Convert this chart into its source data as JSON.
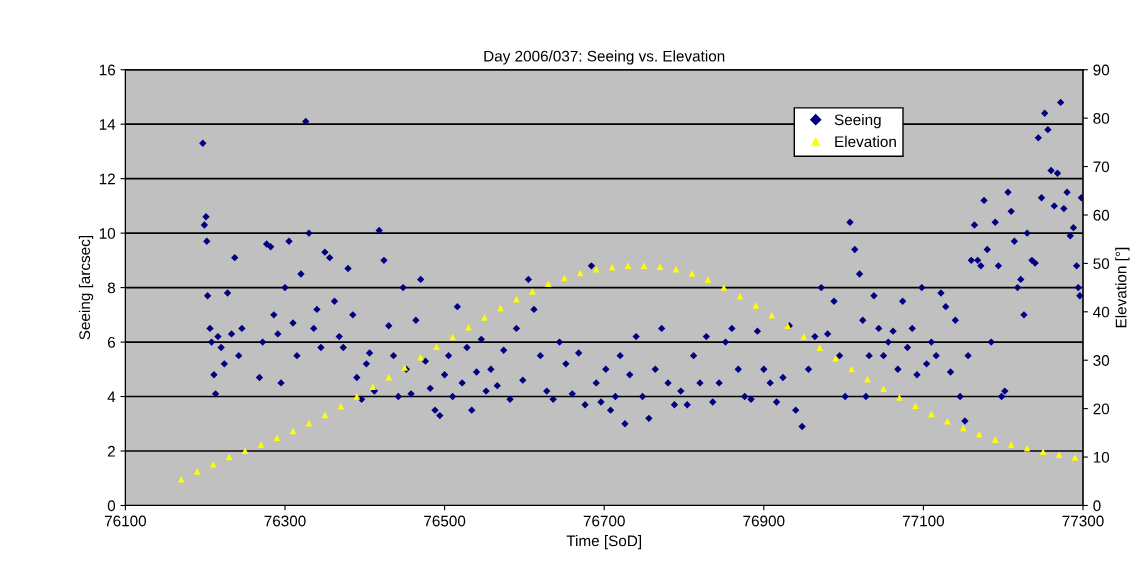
{
  "chart_data": {
    "type": "scatter",
    "title": "Day 2006/037: Seeing vs. Elevation",
    "xlabel": "Time [SoD]",
    "ylabel": "Seeing [arcsec]",
    "y2label": "Elevation [°]",
    "xlim": [
      76100,
      77300
    ],
    "xticks": [
      76100,
      76300,
      76500,
      76700,
      76900,
      77100,
      77300
    ],
    "ylim": [
      0,
      16
    ],
    "yticks": [
      0,
      2,
      4,
      6,
      8,
      10,
      12,
      14,
      16
    ],
    "y2lim": [
      0,
      90
    ],
    "y2ticks": [
      0,
      10,
      20,
      30,
      40,
      50,
      60,
      70,
      80,
      90
    ],
    "grid": "y",
    "legend": "top right",
    "series": [
      {
        "name": "Seeing",
        "color": "#000080",
        "marker": "diamond",
        "x": [
          76197,
          76199,
          76201,
          76202,
          76203,
          76206,
          76208,
          76211,
          76213,
          76216,
          76220,
          76224,
          76228,
          76233,
          76237,
          76242,
          76246,
          76268,
          76272,
          76277,
          76282,
          76286,
          76291,
          76295,
          76300,
          76305,
          76310,
          76315,
          76320,
          76326,
          76330,
          76336,
          76340,
          76345,
          76350,
          76356,
          76362,
          76368,
          76373,
          76379,
          76385,
          76390,
          76396,
          76402,
          76406,
          76412,
          76418,
          76424,
          76430,
          76436,
          76442,
          76448,
          76452,
          76458,
          76464,
          76470,
          76476,
          76482,
          76488,
          76494,
          76500,
          76505,
          76510,
          76516,
          76522,
          76528,
          76534,
          76540,
          76546,
          76552,
          76558,
          76566,
          76574,
          76582,
          76590,
          76598,
          76605,
          76612,
          76620,
          76628,
          76636,
          76644,
          76652,
          76660,
          76668,
          76676,
          76684,
          76690,
          76696,
          76702,
          76708,
          76714,
          76720,
          76726,
          76732,
          76740,
          76748,
          76756,
          76764,
          76772,
          76780,
          76788,
          76796,
          76804,
          76812,
          76820,
          76828,
          76836,
          76844,
          76852,
          76860,
          76868,
          76876,
          76884,
          76892,
          76900,
          76908,
          76916,
          76924,
          76932,
          76940,
          76948,
          76956,
          76964,
          76972,
          76980,
          76988,
          76995,
          77002,
          77008,
          77014,
          77020,
          77024,
          77028,
          77032,
          77038,
          77044,
          77050,
          77056,
          77062,
          77068,
          77074,
          77080,
          77086,
          77092,
          77098,
          77104,
          77110,
          77116,
          77122,
          77128,
          77134,
          77140,
          77146,
          77152,
          77156,
          77160,
          77164,
          77168,
          77172,
          77176,
          77180,
          77185,
          77190,
          77194,
          77198,
          77202,
          77206,
          77210,
          77214,
          77218,
          77222,
          77226,
          77230,
          77236,
          77240,
          77244,
          77248,
          77252,
          77256,
          77260,
          77264,
          77268,
          77272,
          77276,
          77280,
          77284,
          77288,
          77292,
          77294,
          77296,
          77298
        ],
        "values": [
          13.3,
          10.3,
          10.6,
          9.7,
          7.7,
          6.5,
          6.0,
          4.8,
          4.1,
          6.2,
          5.8,
          5.2,
          7.8,
          6.3,
          9.1,
          5.5,
          6.5,
          4.7,
          6.0,
          9.6,
          9.5,
          7.0,
          6.3,
          4.5,
          8.0,
          9.7,
          6.7,
          5.5,
          8.5,
          14.1,
          10.0,
          6.5,
          7.2,
          5.8,
          9.3,
          9.1,
          7.5,
          6.2,
          5.8,
          8.7,
          7.0,
          4.7,
          3.9,
          5.2,
          5.6,
          4.2,
          10.1,
          9.0,
          6.6,
          5.5,
          4.0,
          8.0,
          5.0,
          4.1,
          6.8,
          8.3,
          5.3,
          4.3,
          3.5,
          3.3,
          4.8,
          5.5,
          4.0,
          7.3,
          4.5,
          5.8,
          3.5,
          4.9,
          6.1,
          4.2,
          5.0,
          4.4,
          5.7,
          3.9,
          6.5,
          4.6,
          8.3,
          7.2,
          5.5,
          4.2,
          3.9,
          6.0,
          5.2,
          4.1,
          5.6,
          3.7,
          8.8,
          4.5,
          3.8,
          5.0,
          3.5,
          4.0,
          5.5,
          3.0,
          4.8,
          6.2,
          4.0,
          3.2,
          5.0,
          6.5,
          4.5,
          3.7,
          4.2,
          3.7,
          5.5,
          4.5,
          6.2,
          3.8,
          4.5,
          6.0,
          6.5,
          5.0,
          4.0,
          3.9,
          6.4,
          5.0,
          4.5,
          3.8,
          4.7,
          6.6,
          3.5,
          2.9,
          5.0,
          6.2,
          8.0,
          6.3,
          7.5,
          5.5,
          4.0,
          10.4,
          9.4,
          8.5,
          6.8,
          4.0,
          5.5,
          7.7,
          6.5,
          5.5,
          6.0,
          6.4,
          5.0,
          7.5,
          5.8,
          6.5,
          4.8,
          8.0,
          5.2,
          6.0,
          5.5,
          7.8,
          7.3,
          4.9,
          6.8,
          4.0,
          3.1,
          5.5,
          9.0,
          10.3,
          9.0,
          8.8,
          11.2,
          9.4,
          6.0,
          10.4,
          8.8,
          4.0,
          4.2,
          11.5,
          10.8,
          9.7,
          8.0,
          8.3,
          7.0,
          10.0,
          9.0,
          8.9,
          13.5,
          11.3,
          14.4,
          13.8,
          12.3,
          11.0,
          12.2,
          14.8,
          10.9,
          11.5,
          9.9,
          10.2,
          8.8,
          8.0,
          7.7,
          11.3
        ]
      },
      {
        "name": "Elevation",
        "color": "#ffff00",
        "marker": "triangle",
        "axis": "y2",
        "x": [
          76170,
          76190,
          76210,
          76230,
          76250,
          76270,
          76290,
          76310,
          76330,
          76350,
          76370,
          76390,
          76410,
          76430,
          76450,
          76470,
          76490,
          76510,
          76530,
          76550,
          76570,
          76590,
          76610,
          76630,
          76650,
          76670,
          76690,
          76710,
          76730,
          76750,
          76770,
          76790,
          76810,
          76830,
          76850,
          76870,
          76890,
          76910,
          76930,
          76950,
          76970,
          76990,
          77010,
          77030,
          77050,
          77070,
          77090,
          77110,
          77130,
          77150,
          77170,
          77190,
          77210,
          77230,
          77250,
          77270,
          77290
        ],
        "values": [
          5.4,
          7.0,
          8.5,
          10.0,
          11.3,
          12.6,
          14.0,
          15.4,
          17.0,
          18.7,
          20.5,
          22.5,
          24.5,
          26.5,
          28.5,
          30.6,
          32.8,
          34.8,
          36.8,
          38.8,
          40.8,
          42.6,
          44.2,
          45.8,
          47.0,
          48.0,
          48.8,
          49.2,
          49.5,
          49.5,
          49.3,
          48.8,
          47.9,
          46.6,
          45.0,
          43.2,
          41.3,
          39.3,
          37.1,
          34.9,
          32.6,
          30.4,
          28.2,
          26.1,
          24.1,
          22.3,
          20.6,
          18.9,
          17.4,
          16.0,
          14.7,
          13.6,
          12.6,
          11.8,
          11.1,
          10.5,
          9.9
        ]
      }
    ]
  }
}
